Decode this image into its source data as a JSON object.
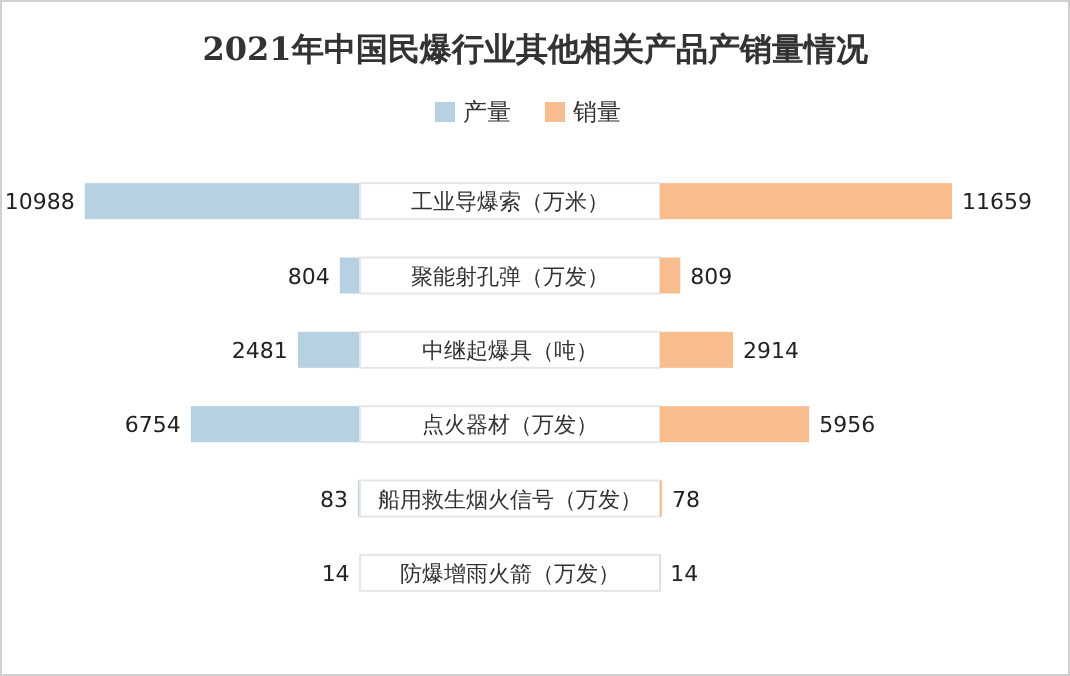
{
  "chart_data": [
    {
      "type": "bar",
      "orientation": "horizontal",
      "title": "2021年中国民爆行业其他相关产品产销量情况",
      "categories": [
        "工业导爆索（万米）",
        "聚能射孔弹（万发）",
        "中继起爆具（吨）",
        "点火器材（万发）",
        "船用救生烟火信号（万发）",
        "防爆增雨火箭（万发）"
      ],
      "series": [
        {
          "name": "产量",
          "color": "#b7d1e3",
          "values": [
            10988,
            804,
            2481,
            6754,
            83,
            14
          ]
        }
      ],
      "data_labels": true,
      "legend": "top"
    },
    {
      "type": "bar",
      "orientation": "horizontal",
      "tick_labels": false,
      "categories": [
        null,
        null,
        null,
        null,
        null,
        null
      ],
      "series": [
        {
          "name": "销量",
          "color": "#f7bd8e",
          "values": [
            11659,
            809,
            2914,
            5956,
            78,
            14
          ]
        }
      ],
      "data_labels": true,
      "legend": "top"
    }
  ]
}
